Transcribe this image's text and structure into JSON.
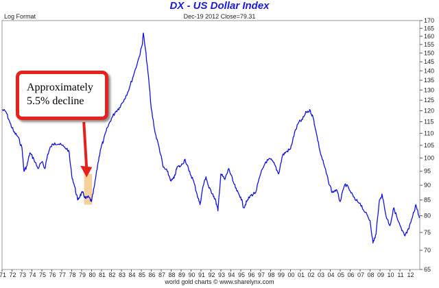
{
  "chart_data": {
    "type": "line",
    "title": "DX  -  US Dollar Index",
    "subtitle": "Dec-19 2012    Close=79.31",
    "scale_note": "Log Format",
    "footer": "world gold charts © www.sharelynx.com",
    "y_scale": "log",
    "ylim": [
      65,
      170
    ],
    "y_ticks": [
      65,
      70,
      75,
      80,
      85,
      90,
      95,
      100,
      105,
      110,
      115,
      120,
      125,
      130,
      135,
      140,
      145,
      150,
      155,
      160,
      165,
      170
    ],
    "x_tick_labels": [
      "71",
      "72",
      "73",
      "74",
      "75",
      "76",
      "77",
      "78",
      "79",
      "80",
      "81",
      "82",
      "83",
      "84",
      "85",
      "86",
      "87",
      "88",
      "89",
      "90",
      "91",
      "92",
      "93",
      "94",
      "95",
      "96",
      "97",
      "98",
      "99",
      "00",
      "01",
      "02",
      "03",
      "04",
      "05",
      "06",
      "07",
      "08",
      "09",
      "10",
      "11",
      "12"
    ],
    "xlim": [
      1971.0,
      2013.0
    ],
    "grid": false,
    "series": [
      {
        "color": "#1010e0",
        "x": [
          1971.0,
          1971.4,
          1971.8,
          1972.2,
          1972.6,
          1973.0,
          1973.2,
          1973.5,
          1973.8,
          1974.2,
          1974.6,
          1975.0,
          1975.3,
          1975.6,
          1975.9,
          1976.3,
          1976.7,
          1977.2,
          1977.7,
          1978.0,
          1978.3,
          1978.6,
          1978.85,
          1979.1,
          1979.4,
          1979.7,
          1980.0,
          1980.3,
          1980.6,
          1980.9,
          1981.2,
          1981.6,
          1982.0,
          1982.4,
          1982.8,
          1983.3,
          1983.8,
          1984.3,
          1984.8,
          1985.1,
          1985.2,
          1985.6,
          1986.0,
          1986.4,
          1986.8,
          1987.2,
          1987.6,
          1988.0,
          1988.3,
          1988.6,
          1989.0,
          1989.4,
          1989.8,
          1990.2,
          1990.6,
          1990.9,
          1991.2,
          1991.5,
          1991.8,
          1992.2,
          1992.5,
          1992.7,
          1993.0,
          1993.4,
          1993.8,
          1994.2,
          1994.6,
          1995.0,
          1995.3,
          1995.6,
          1996.0,
          1996.5,
          1997.0,
          1997.5,
          1998.0,
          1998.4,
          1998.8,
          1999.2,
          1999.6,
          2000.0,
          2000.4,
          2000.8,
          2001.2,
          2001.6,
          2002.0,
          2002.3,
          2002.6,
          2003.0,
          2003.4,
          2003.8,
          2004.2,
          2004.6,
          2005.0,
          2005.5,
          2006.0,
          2006.5,
          2007.0,
          2007.5,
          2008.0,
          2008.3,
          2008.6,
          2008.9,
          2009.2,
          2009.6,
          2010.0,
          2010.4,
          2010.8,
          2011.2,
          2011.5,
          2011.9,
          2012.3,
          2012.6,
          2012.97
        ],
        "values": [
          120.5,
          119.5,
          114.5,
          110.5,
          108.5,
          104.0,
          95.0,
          97.0,
          102.0,
          99.5,
          96.0,
          98.5,
          96.0,
          101.5,
          104.5,
          106.0,
          105.5,
          104.5,
          103.0,
          93.5,
          89.5,
          85.0,
          86.5,
          87.5,
          85.5,
          86.0,
          84.5,
          90.0,
          97.0,
          103.5,
          107.0,
          112.5,
          116.5,
          119.5,
          121.5,
          125.5,
          131.0,
          139.0,
          148.0,
          155.0,
          162.0,
          143.0,
          121.0,
          110.0,
          104.0,
          96.5,
          95.0,
          91.5,
          92.5,
          96.5,
          97.0,
          99.5,
          95.0,
          92.0,
          87.0,
          83.5,
          89.5,
          93.0,
          89.0,
          87.0,
          84.5,
          81.5,
          94.0,
          92.0,
          96.0,
          91.5,
          88.0,
          86.0,
          82.5,
          84.5,
          86.5,
          87.5,
          94.0,
          98.5,
          99.5,
          97.5,
          94.0,
          101.0,
          102.5,
          103.5,
          110.0,
          114.5,
          116.0,
          119.5,
          120.0,
          116.5,
          110.0,
          102.0,
          97.0,
          91.5,
          87.5,
          88.5,
          84.5,
          90.5,
          88.0,
          85.0,
          84.0,
          81.0,
          78.5,
          72.0,
          74.5,
          84.0,
          87.0,
          80.0,
          77.0,
          82.5,
          78.5,
          75.5,
          74.0,
          76.0,
          80.0,
          83.5,
          79.31
        ]
      }
    ],
    "annotation": {
      "text_lines": [
        "Approximately",
        "5.5% decline"
      ],
      "highlight_x": [
        1979.25,
        1980.05
      ],
      "highlight_y": [
        83.5,
        94.0
      ],
      "arrow_target_x": 1979.5,
      "arrow_target_y": 93.0,
      "box_color": "#e8201c",
      "highlight_color": "#f5c88a"
    }
  }
}
